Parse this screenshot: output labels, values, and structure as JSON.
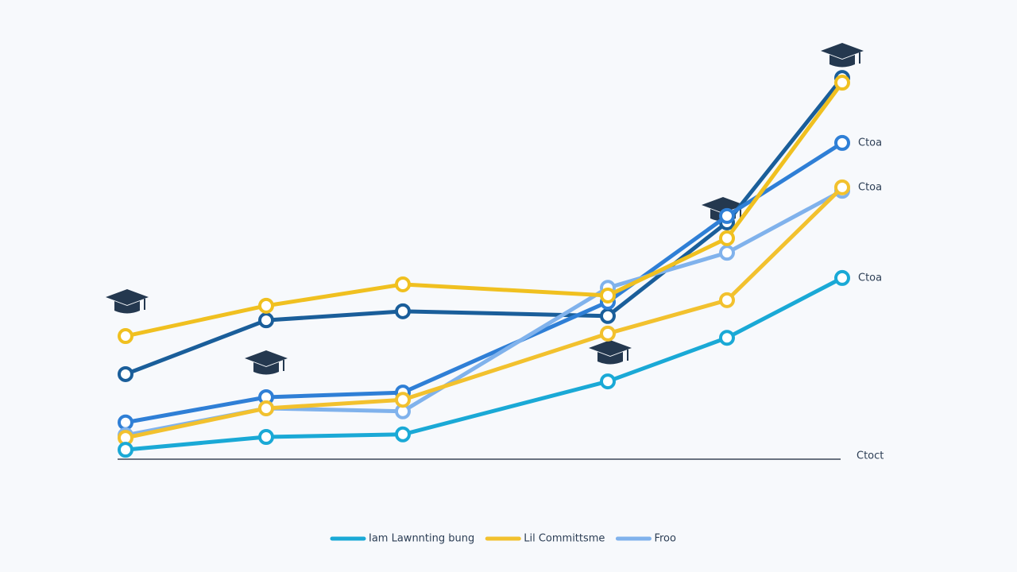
{
  "chart_data": {
    "type": "line",
    "categories": [
      null,
      null,
      null,
      null,
      null,
      null
    ],
    "ylim": [
      0,
      100
    ],
    "baseline_label": "Ctoct",
    "series": [
      {
        "color": "#1a5e9a",
        "values": [
          19.9,
          32.5,
          34.6,
          33.5,
          55.4,
          89.2
        ]
      },
      {
        "color": "#2f7fd6",
        "values": [
          8.6,
          14.5,
          15.6,
          36.8,
          56.9,
          74.0
        ],
        "end_label": "Ctoa"
      },
      {
        "name": "Froo",
        "color": "#80b2ec",
        "values": [
          5.6,
          11.9,
          11.2,
          40.1,
          48.3,
          62.8
        ]
      },
      {
        "color": "#f0c020",
        "values": [
          28.8,
          35.9,
          40.9,
          38.3,
          51.7,
          88.1
        ]
      },
      {
        "name": "Lil Committsme",
        "color": "#f2c12e",
        "values": [
          5.0,
          11.9,
          13.9,
          29.4,
          37.2,
          63.6
        ],
        "end_label": "Ctoa"
      },
      {
        "name": "Iam Lawnnting bung",
        "color": "#1aa9d6",
        "values": [
          2.2,
          5.2,
          5.8,
          18.2,
          28.4,
          42.4
        ],
        "end_label": "Ctoa"
      }
    ]
  }
}
